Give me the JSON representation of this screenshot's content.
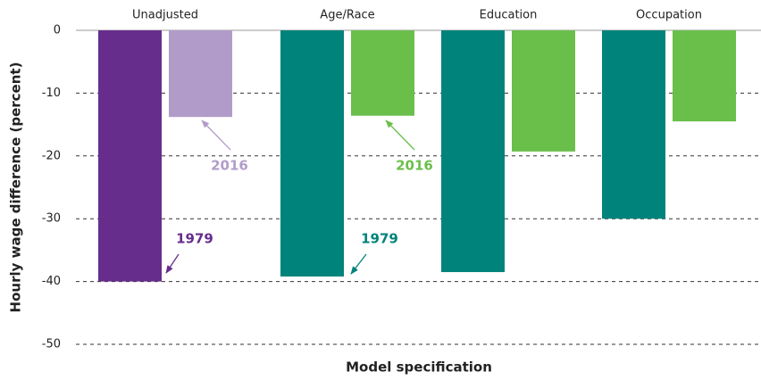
{
  "chart_data": {
    "type": "bar",
    "xlabel": "Model specification",
    "ylabel": "Hourly wage difference (percent)",
    "categories": [
      "Unadjusted",
      "Age/Race",
      "Education",
      "Occupation"
    ],
    "series": [
      {
        "name": "1979",
        "colors": [
          "#662d8c",
          "#00837a",
          "#00837a",
          "#00837a"
        ],
        "values": [
          -40,
          -39.2,
          -38.5,
          -30
        ]
      },
      {
        "name": "2016",
        "colors": [
          "#b19cc9",
          "#6abf4b",
          "#6abf4b",
          "#6abf4b"
        ],
        "values": [
          -13.8,
          -13.6,
          -19.3,
          -14.5
        ]
      }
    ],
    "ylim": [
      -50,
      0
    ],
    "yticks": [
      0,
      -10,
      -20,
      -30,
      -40,
      -50
    ],
    "grid": true
  }
}
